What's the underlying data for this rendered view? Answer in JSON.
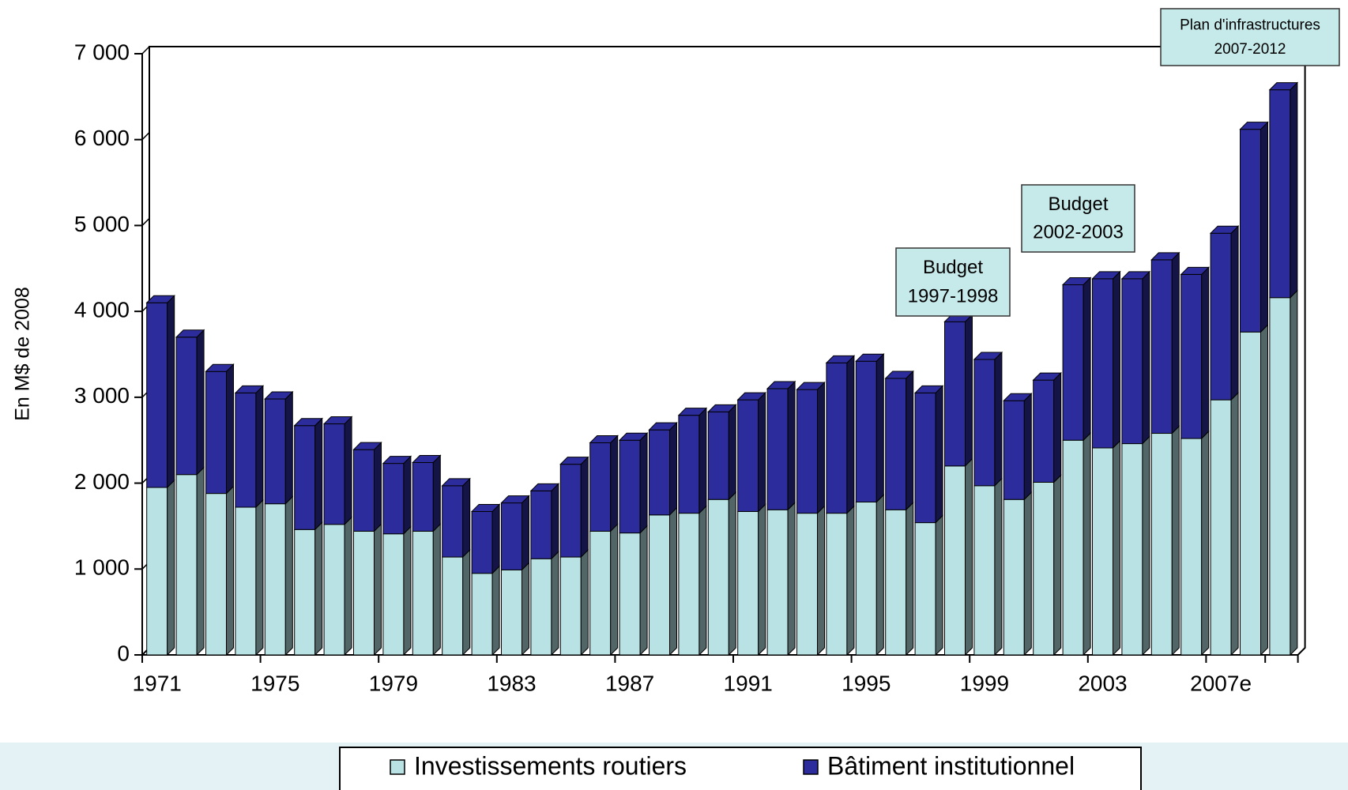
{
  "chart_data": {
    "type": "stacked-bar-3d",
    "y_label": "En M$ de 2008",
    "categories": [
      "1971",
      null,
      null,
      null,
      "1975",
      null,
      null,
      null,
      "1979",
      null,
      null,
      null,
      "1983",
      null,
      null,
      null,
      "1987",
      null,
      null,
      null,
      "1991",
      null,
      null,
      null,
      "1995",
      null,
      null,
      null,
      "1999",
      null,
      null,
      null,
      "2003",
      null,
      null,
      null,
      "2007e",
      null,
      null
    ],
    "series": [
      {
        "name": "Investissements routiers",
        "color": "#b8e2e4",
        "values": [
          1950,
          2100,
          1880,
          1720,
          1760,
          1460,
          1520,
          1440,
          1410,
          1440,
          1140,
          950,
          990,
          1120,
          1140,
          1440,
          1420,
          1630,
          1650,
          1810,
          1670,
          1690,
          1650,
          1650,
          1780,
          1690,
          1540,
          2200,
          1970,
          1810,
          2010,
          2500,
          2410,
          2460,
          2580,
          2520,
          2970,
          3760,
          4160
        ]
      },
      {
        "name": "Bâtiment institutionnel",
        "color": "#2c2c9c",
        "values": [
          2150,
          1600,
          1420,
          1330,
          1220,
          1210,
          1170,
          950,
          820,
          800,
          830,
          720,
          780,
          790,
          1080,
          1030,
          1080,
          990,
          1140,
          1020,
          1300,
          1410,
          1440,
          1750,
          1640,
          1530,
          1510,
          1680,
          1470,
          1150,
          1190,
          1810,
          1970,
          1920,
          2020,
          1910,
          1940,
          2360,
          2420
        ]
      }
    ],
    "ylim": [
      0,
      7000
    ],
    "yticks": [
      0,
      {
        "value": 1000,
        "label": "1 000"
      },
      {
        "value": 2000,
        "label": "2 000"
      },
      {
        "value": 3000,
        "label": "3 000"
      },
      {
        "value": 4000,
        "label": "4 000"
      },
      {
        "value": 5000,
        "label": "5 000"
      },
      {
        "value": 6000,
        "label": "6 000"
      },
      {
        "value": 7000,
        "label": "7 000"
      }
    ],
    "annotations": [
      [
        "Budget",
        "1997-1998"
      ],
      [
        "Budget",
        "2002-2003"
      ],
      [
        "Plan d'infrastructures",
        "2007-2012"
      ]
    ],
    "legend": "bottom"
  }
}
